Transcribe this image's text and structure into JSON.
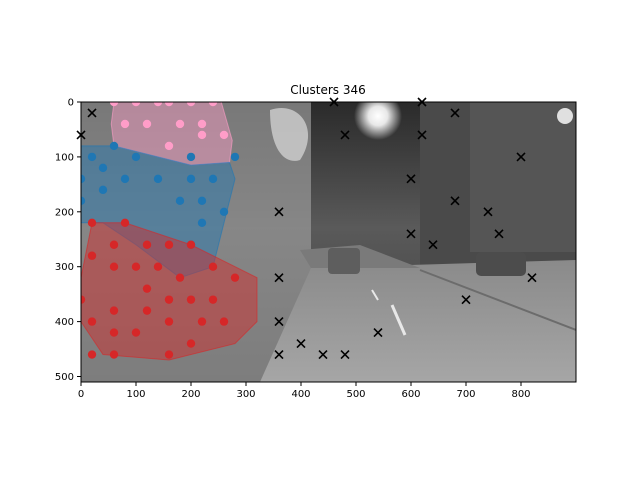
{
  "chart_data": {
    "type": "scatter",
    "title": "Clusters 346",
    "xlabel": "",
    "ylabel": "",
    "xlim": [
      0,
      900
    ],
    "ylim": [
      510,
      0
    ],
    "y_inverted": true,
    "grid": false,
    "xticks": [
      0,
      100,
      200,
      300,
      400,
      500,
      600,
      700,
      800
    ],
    "yticks": [
      0,
      100,
      200,
      300,
      400,
      500
    ],
    "background": "grayscale night street photo",
    "clusters": [
      {
        "color": "#ff9dc8",
        "hull": [
          [
            60,
            0
          ],
          [
            255,
            0
          ],
          [
            275,
            70
          ],
          [
            270,
            110
          ],
          [
            200,
            115
          ],
          [
            140,
            100
          ],
          [
            60,
            80
          ],
          [
            55,
            40
          ]
        ],
        "points": [
          [
            60,
            0
          ],
          [
            100,
            0
          ],
          [
            140,
            0
          ],
          [
            160,
            0
          ],
          [
            200,
            0
          ],
          [
            240,
            0
          ],
          [
            80,
            40
          ],
          [
            120,
            40
          ],
          [
            180,
            40
          ],
          [
            220,
            40
          ],
          [
            160,
            80
          ],
          [
            220,
            60
          ],
          [
            260,
            60
          ]
        ]
      },
      {
        "color": "#1f77b4",
        "hull": [
          [
            0,
            80
          ],
          [
            60,
            80
          ],
          [
            140,
            100
          ],
          [
            200,
            115
          ],
          [
            270,
            110
          ],
          [
            280,
            140
          ],
          [
            260,
            220
          ],
          [
            240,
            300
          ],
          [
            180,
            320
          ],
          [
            100,
            260
          ],
          [
            40,
            220
          ],
          [
            0,
            220
          ],
          [
            0,
            100
          ]
        ],
        "points": [
          [
            0,
            140
          ],
          [
            0,
            180
          ],
          [
            20,
            100
          ],
          [
            40,
            120
          ],
          [
            40,
            160
          ],
          [
            60,
            80
          ],
          [
            80,
            140
          ],
          [
            100,
            100
          ],
          [
            140,
            140
          ],
          [
            180,
            180
          ],
          [
            200,
            100
          ],
          [
            200,
            140
          ],
          [
            220,
            180
          ],
          [
            220,
            220
          ],
          [
            240,
            140
          ],
          [
            260,
            200
          ],
          [
            280,
            100
          ],
          [
            200,
            260
          ]
        ]
      },
      {
        "color": "#d62728",
        "hull": [
          [
            20,
            220
          ],
          [
            80,
            220
          ],
          [
            200,
            260
          ],
          [
            280,
            300
          ],
          [
            320,
            320
          ],
          [
            320,
            400
          ],
          [
            280,
            440
          ],
          [
            160,
            470
          ],
          [
            40,
            460
          ],
          [
            0,
            400
          ],
          [
            0,
            320
          ]
        ],
        "points": [
          [
            20,
            220
          ],
          [
            80,
            220
          ],
          [
            20,
            280
          ],
          [
            60,
            260
          ],
          [
            120,
            260
          ],
          [
            160,
            260
          ],
          [
            200,
            260
          ],
          [
            60,
            300
          ],
          [
            100,
            300
          ],
          [
            140,
            300
          ],
          [
            180,
            320
          ],
          [
            240,
            300
          ],
          [
            280,
            320
          ],
          [
            120,
            340
          ],
          [
            0,
            360
          ],
          [
            160,
            360
          ],
          [
            200,
            360
          ],
          [
            240,
            360
          ],
          [
            20,
            400
          ],
          [
            60,
            380
          ],
          [
            120,
            380
          ],
          [
            160,
            400
          ],
          [
            220,
            400
          ],
          [
            260,
            400
          ],
          [
            60,
            420
          ],
          [
            100,
            420
          ],
          [
            200,
            440
          ],
          [
            20,
            460
          ],
          [
            60,
            460
          ],
          [
            160,
            460
          ]
        ]
      }
    ],
    "noise_points": [
      [
        20,
        20
      ],
      [
        0,
        60
      ],
      [
        460,
        0
      ],
      [
        620,
        0
      ],
      [
        480,
        60
      ],
      [
        620,
        60
      ],
      [
        680,
        20
      ],
      [
        800,
        100
      ],
      [
        600,
        140
      ],
      [
        680,
        180
      ],
      [
        360,
        200
      ],
      [
        740,
        200
      ],
      [
        600,
        240
      ],
      [
        640,
        260
      ],
      [
        760,
        240
      ],
      [
        360,
        320
      ],
      [
        820,
        320
      ],
      [
        700,
        360
      ],
      [
        360,
        400
      ],
      [
        540,
        420
      ],
      [
        400,
        440
      ],
      [
        360,
        460
      ],
      [
        440,
        460
      ],
      [
        480,
        460
      ]
    ]
  }
}
